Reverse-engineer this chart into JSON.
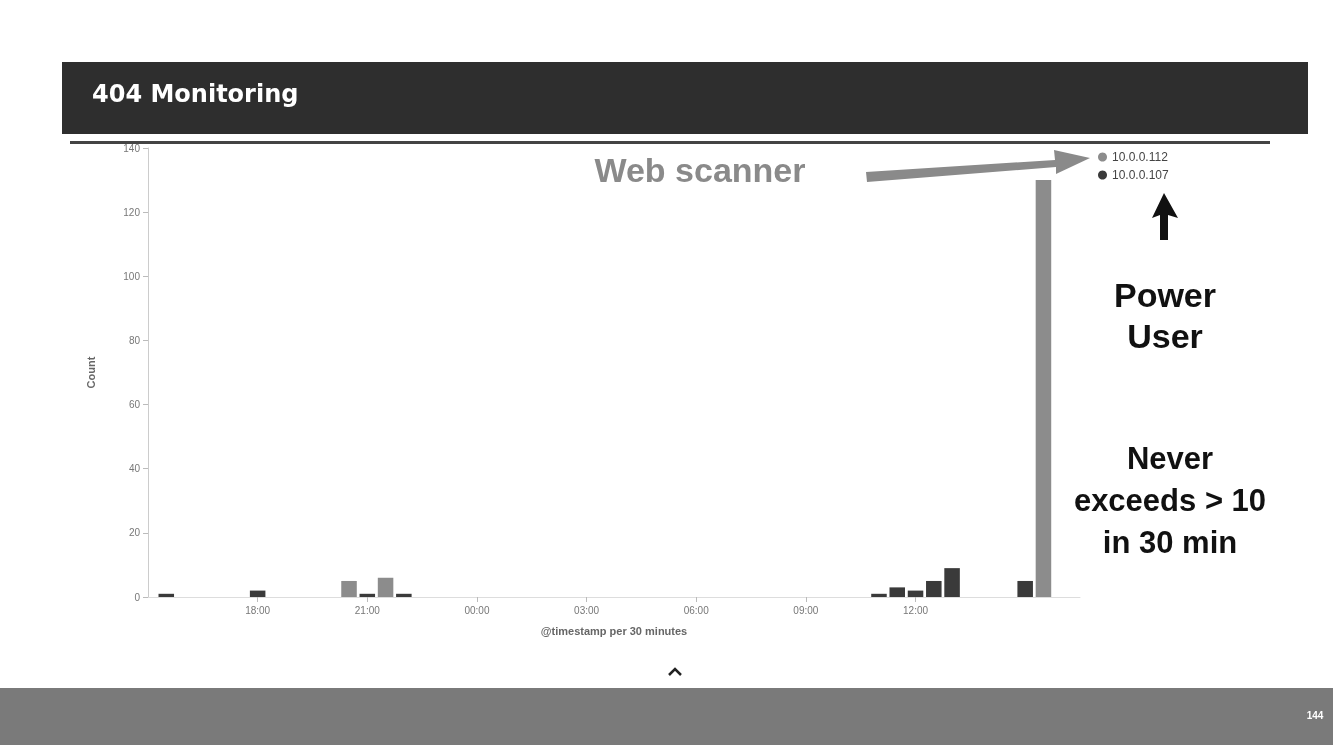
{
  "chart_data": {
    "type": "bar",
    "title": "404 Monitoring",
    "xlabel": "@timestamp per 30 minutes",
    "ylabel": "Count",
    "series": [
      {
        "name": "10.0.0.112",
        "color": "#8c8c8c",
        "x": [
          "--01-01T20:30",
          "--01-01T21:30",
          "--01-02T15:30"
        ],
        "values": [
          5,
          6,
          130
        ]
      },
      {
        "name": "10.0.0.107",
        "color": "#3a3a3a",
        "x": [
          "--01-01T15:30",
          "--01-01T18:00",
          "--01-01T21:00",
          "--01-01T22:00",
          "--01-02T11:00",
          "--01-02T11:30",
          "--01-02T12:00",
          "--01-02T12:30",
          "--01-02T13:00",
          "--01-02T15:00"
        ],
        "values": [
          1,
          2,
          1,
          1,
          1,
          3,
          2,
          5,
          9,
          5
        ]
      }
    ],
    "xlim": [
      "--01-01T15:00",
      "--01-02T16:30"
    ],
    "xticks": [
      {
        "value": "--01-01T18:00",
        "label": "18:00"
      },
      {
        "value": "--01-01T21:00",
        "label": "21:00"
      },
      {
        "value": "--01-02T00:00",
        "label": "00:00"
      },
      {
        "value": "--01-02T03:00",
        "label": "03:00"
      },
      {
        "value": "--01-02T06:00",
        "label": "06:00"
      },
      {
        "value": "--01-02T09:00",
        "label": "09:00"
      },
      {
        "value": "--01-02T12:00",
        "label": "12:00"
      }
    ],
    "ylim": [
      0,
      140
    ],
    "yticks": [
      0,
      20,
      40,
      60,
      80,
      100,
      120,
      140
    ],
    "grid": false,
    "legend": "top right",
    "annotations": [
      "Web scanner",
      "Power User",
      "Never exceeds > 10 in 30 min",
      "144"
    ]
  }
}
